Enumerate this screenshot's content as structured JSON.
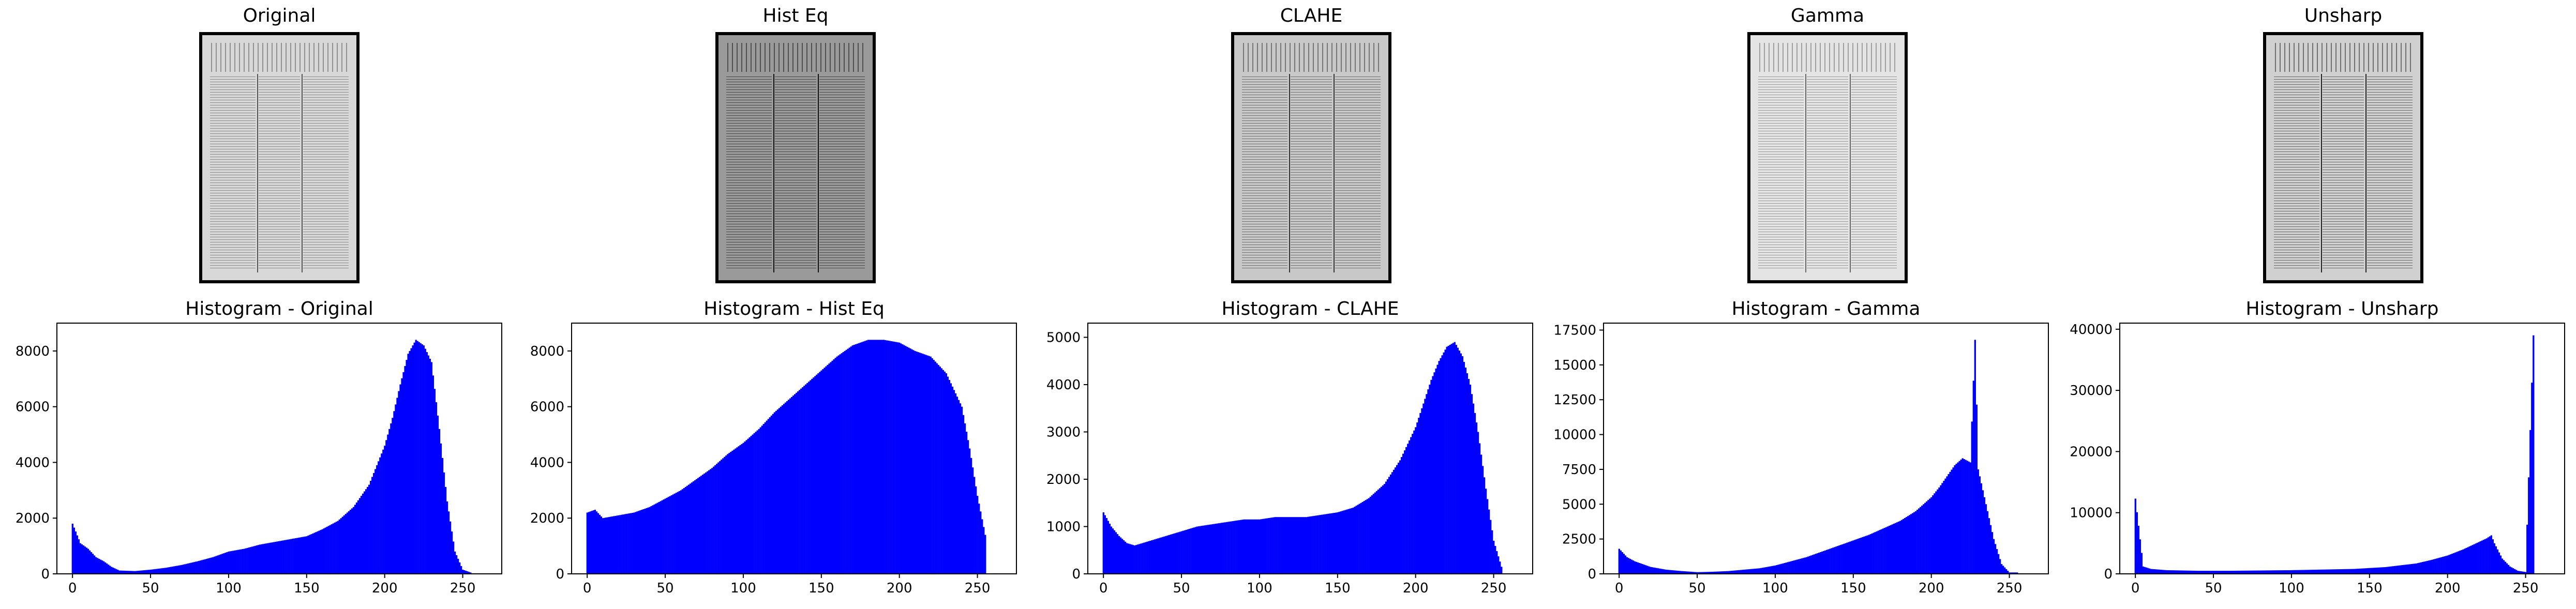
{
  "figure": {
    "image_titles": [
      "Original",
      "Hist Eq",
      "CLAHE",
      "Gamma",
      "Unsharp"
    ]
  },
  "chart_data": [
    {
      "type": "bar",
      "title": "Histogram - Original",
      "xlabel": "",
      "ylabel": "",
      "xlim": [
        -10,
        275
      ],
      "ylim": [
        0,
        9000
      ],
      "xticks": [
        0,
        50,
        100,
        150,
        200,
        250
      ],
      "yticks": [
        0,
        2000,
        4000,
        6000,
        8000
      ],
      "color": "#0000ff",
      "x": [
        0,
        5,
        10,
        15,
        20,
        25,
        30,
        40,
        50,
        60,
        70,
        80,
        90,
        100,
        110,
        120,
        130,
        140,
        150,
        160,
        170,
        180,
        190,
        200,
        205,
        210,
        215,
        220,
        225,
        230,
        235,
        240,
        245,
        250,
        255
      ],
      "values": [
        1800,
        1100,
        900,
        600,
        450,
        250,
        120,
        100,
        150,
        220,
        320,
        450,
        600,
        800,
        900,
        1050,
        1150,
        1250,
        1350,
        1600,
        1900,
        2400,
        3200,
        4600,
        5600,
        6800,
        7900,
        8400,
        8200,
        7600,
        5200,
        2600,
        800,
        150,
        50
      ]
    },
    {
      "type": "bar",
      "title": "Histogram - Hist Eq",
      "xlabel": "",
      "ylabel": "",
      "xlim": [
        -10,
        275
      ],
      "ylim": [
        0,
        9000
      ],
      "xticks": [
        0,
        50,
        100,
        150,
        200,
        250
      ],
      "yticks": [
        0,
        2000,
        4000,
        6000,
        8000
      ],
      "color": "#0000ff",
      "x": [
        0,
        5,
        10,
        20,
        30,
        40,
        50,
        60,
        70,
        80,
        90,
        100,
        110,
        120,
        130,
        140,
        150,
        160,
        170,
        180,
        190,
        200,
        210,
        220,
        230,
        240,
        245,
        250,
        255
      ],
      "values": [
        2200,
        2300,
        2000,
        2100,
        2200,
        2400,
        2700,
        3000,
        3400,
        3800,
        4300,
        4700,
        5200,
        5800,
        6300,
        6800,
        7300,
        7800,
        8200,
        8400,
        8400,
        8300,
        8000,
        7800,
        7200,
        6000,
        4500,
        2800,
        1400
      ]
    },
    {
      "type": "bar",
      "title": "Histogram - CLAHE",
      "xlabel": "",
      "ylabel": "",
      "xlim": [
        -10,
        275
      ],
      "ylim": [
        0,
        5300
      ],
      "xticks": [
        0,
        50,
        100,
        150,
        200,
        250
      ],
      "yticks": [
        0,
        1000,
        2000,
        3000,
        4000,
        5000
      ],
      "color": "#0000ff",
      "x": [
        0,
        5,
        10,
        15,
        20,
        30,
        40,
        50,
        60,
        70,
        80,
        90,
        100,
        110,
        120,
        130,
        140,
        150,
        160,
        170,
        180,
        190,
        200,
        205,
        210,
        215,
        220,
        225,
        230,
        235,
        240,
        245,
        250,
        255
      ],
      "values": [
        1300,
        1000,
        800,
        650,
        600,
        700,
        800,
        900,
        1000,
        1050,
        1100,
        1150,
        1150,
        1200,
        1200,
        1200,
        1250,
        1300,
        1400,
        1600,
        1900,
        2400,
        3100,
        3600,
        4100,
        4500,
        4800,
        4900,
        4600,
        4000,
        3000,
        1800,
        700,
        150
      ]
    },
    {
      "type": "bar",
      "title": "Histogram - Gamma",
      "xlabel": "",
      "ylabel": "",
      "xlim": [
        -10,
        275
      ],
      "ylim": [
        0,
        18000
      ],
      "xticks": [
        0,
        50,
        100,
        150,
        200,
        250
      ],
      "yticks": [
        0,
        2500,
        5000,
        7500,
        10000,
        12500,
        15000,
        17500
      ],
      "color": "#0000ff",
      "x": [
        0,
        5,
        10,
        15,
        20,
        30,
        40,
        50,
        60,
        70,
        80,
        90,
        100,
        110,
        120,
        130,
        140,
        150,
        160,
        170,
        180,
        190,
        200,
        205,
        210,
        215,
        220,
        225,
        228,
        230,
        235,
        240,
        245,
        250
      ],
      "values": [
        1800,
        1200,
        900,
        700,
        500,
        300,
        200,
        120,
        150,
        200,
        300,
        400,
        600,
        900,
        1200,
        1600,
        2000,
        2400,
        2800,
        3300,
        3800,
        4500,
        5500,
        6200,
        7000,
        7800,
        8300,
        8000,
        16800,
        7500,
        5000,
        2500,
        700,
        100
      ]
    },
    {
      "type": "bar",
      "title": "Histogram - Unsharp",
      "xlabel": "",
      "ylabel": "",
      "xlim": [
        -10,
        275
      ],
      "ylim": [
        0,
        41000
      ],
      "xticks": [
        0,
        50,
        100,
        150,
        200,
        250
      ],
      "yticks": [
        0,
        10000,
        20000,
        30000,
        40000
      ],
      "color": "#0000ff",
      "x": [
        0,
        5,
        10,
        20,
        40,
        60,
        80,
        100,
        120,
        140,
        160,
        180,
        190,
        200,
        210,
        215,
        220,
        225,
        228,
        230,
        235,
        240,
        245,
        250,
        255
      ],
      "values": [
        12300,
        1200,
        800,
        600,
        500,
        500,
        550,
        600,
        700,
        800,
        1100,
        1700,
        2300,
        3000,
        4000,
        4600,
        5200,
        5800,
        6300,
        5000,
        2500,
        1200,
        500,
        300,
        39000
      ]
    }
  ]
}
